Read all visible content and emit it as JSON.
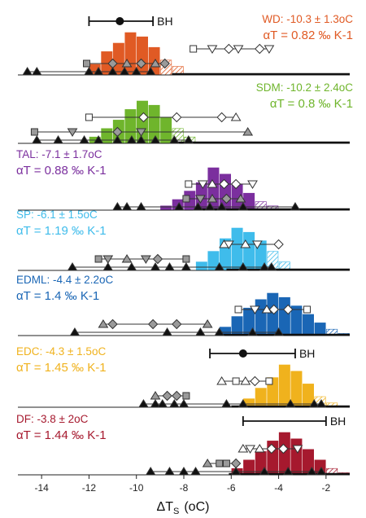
{
  "chart_data": {
    "type": "histogram-stack",
    "xlim": [
      -15,
      -1
    ],
    "x_ticks": [
      -14,
      -12,
      -10,
      -8,
      -6,
      -4,
      -2
    ],
    "x_tick_labels": [
      "-14",
      "-12",
      "-10",
      "-8",
      "-6",
      "-4",
      "-2"
    ],
    "xlabel_main": "ΔT",
    "xlabel_sub": "S",
    "xlabel_unit": "(oC)",
    "bh_label": "BH",
    "panels": [
      {
        "id": "WD",
        "color": "#E05A24",
        "line1": "WD: -10.3 ± 1.3oC",
        "line2": "αT = 0.82 ‰ K-1",
        "bins": [
          [
            -12,
            0.25
          ],
          [
            -11.5,
            0.55
          ],
          [
            -11,
            0.75
          ],
          [
            -10.5,
            1.0
          ],
          [
            -10,
            0.9
          ],
          [
            -9.5,
            0.65
          ],
          [
            -9,
            0.35
          ],
          [
            -8.5,
            0.2
          ]
        ],
        "bh": {
          "center": -10.7,
          "min": -12.0,
          "max": -9.3
        },
        "ref": {
          "value": -8.5
        },
        "open": [
          [
            -7.6,
            "square"
          ],
          [
            -6.8,
            "triangle"
          ],
          [
            -6.1,
            "diamond"
          ],
          [
            -5.7,
            "triangle"
          ],
          [
            -4.8,
            "diamond"
          ],
          [
            -4.4,
            "triangle"
          ]
        ],
        "gray": [
          [
            -12.1,
            "square"
          ],
          [
            -11.0,
            "diamond"
          ],
          [
            -10.4,
            "triangle"
          ],
          [
            -9.8,
            "diamond"
          ],
          [
            -9.2,
            "triangle"
          ],
          [
            -8.8,
            "diamond"
          ]
        ],
        "black": [
          -14.6,
          -14.2,
          -12.0,
          -11.6,
          -11.0,
          -10.5,
          -10.0,
          -9.4
        ]
      },
      {
        "id": "SDM",
        "color": "#6FB52C",
        "line1": "SDM: -10.2 ± 2.4oC",
        "line2": "αT = 0.8 ‰ K-1",
        "bins": [
          [
            -12,
            0.15
          ],
          [
            -11.5,
            0.35
          ],
          [
            -11,
            0.55
          ],
          [
            -10.5,
            0.8
          ],
          [
            -10,
            1.0
          ],
          [
            -9.5,
            0.9
          ],
          [
            -9,
            0.6
          ],
          [
            -8.5,
            0.35
          ],
          [
            -8,
            0.15
          ]
        ],
        "ref": {
          "value": -8.5
        },
        "open": [
          [
            -12.0,
            "square"
          ],
          [
            -9.7,
            "diamond"
          ],
          [
            -8.3,
            "diamond"
          ],
          [
            -6.4,
            "diamond"
          ],
          [
            -5.8,
            "triangle"
          ]
        ],
        "gray": [
          [
            -14.3,
            "square"
          ],
          [
            -12.7,
            "triangle"
          ],
          [
            -10.8,
            "diamond"
          ],
          [
            -9.8,
            "triangle"
          ],
          [
            -5.3,
            "triangle"
          ]
        ],
        "black": [
          -14.2,
          -13.3,
          -12.2,
          -11.6,
          -10.8,
          -10.2,
          -9.8,
          -9.2,
          -8.4,
          -7.8
        ]
      },
      {
        "id": "TAL",
        "color": "#7B2F9E",
        "line1": "TAL: -7.1 ± 1.7oC",
        "line2": "αT = 0.88 ‰ K-1",
        "bins": [
          [
            -9,
            0.1
          ],
          [
            -8.5,
            0.25
          ],
          [
            -8,
            0.45
          ],
          [
            -7.5,
            0.65
          ],
          [
            -7,
            1.0
          ],
          [
            -6.5,
            0.85
          ],
          [
            -6,
            0.6
          ],
          [
            -5.5,
            0.4
          ],
          [
            -5,
            0.2
          ],
          [
            -4.5,
            0.1
          ]
        ],
        "ref": {
          "value": -7.5
        },
        "open": [
          [
            -7.8,
            "square"
          ],
          [
            -7.2,
            "triangle"
          ],
          [
            -6.8,
            "triangle"
          ],
          [
            -6.3,
            "diamond"
          ],
          [
            -5.8,
            "diamond"
          ],
          [
            -5.1,
            "triangle"
          ]
        ],
        "gray": [
          [
            -7.9,
            "square"
          ],
          [
            -7.3,
            "triangle"
          ],
          [
            -6.8,
            "triangle"
          ],
          [
            -6.2,
            "diamond"
          ],
          [
            -5.6,
            "triangle"
          ]
        ],
        "black": [
          -10.8,
          -10.4,
          -9.8,
          -8.2,
          -7.4,
          -6.9,
          -6.4,
          -5.5,
          -3.3
        ]
      },
      {
        "id": "SP",
        "color": "#3FBCEB",
        "line1": "SP: -6.1 ± 1.5oC",
        "line2": "αT = 1.19 ‰ K-1",
        "bins": [
          [
            -7.5,
            0.2
          ],
          [
            -7,
            0.45
          ],
          [
            -6.5,
            0.75
          ],
          [
            -6,
            1.0
          ],
          [
            -5.5,
            0.9
          ],
          [
            -5,
            0.7
          ],
          [
            -4.5,
            0.45
          ],
          [
            -4,
            0.2
          ]
        ],
        "ref": {
          "value": -6.2
        },
        "open": [
          [
            -6.3,
            "triangle"
          ],
          [
            -6.1,
            "triangle"
          ],
          [
            -5.4,
            "triangle"
          ],
          [
            -4.9,
            "triangle"
          ],
          [
            -4.0,
            "diamond"
          ]
        ],
        "gray": [
          [
            -11.6,
            "square"
          ],
          [
            -11.2,
            "triangle"
          ],
          [
            -10.4,
            "triangle"
          ],
          [
            -9.6,
            "triangle"
          ],
          [
            -9.1,
            "diamond"
          ],
          [
            -7.9,
            "square"
          ]
        ],
        "black": [
          -12.7,
          -11.2,
          -10.2,
          -9.2,
          -8.6,
          -7.9,
          -6.5,
          -5.5,
          -4.6,
          -4.3
        ]
      },
      {
        "id": "EDML",
        "color": "#1A66B5",
        "line1": "EDML: -4.4 ± 2.2oC",
        "line2": "αT = 1.4 ‰ K-1",
        "bins": [
          [
            -6.5,
            0.2
          ],
          [
            -6,
            0.45
          ],
          [
            -5.5,
            0.65
          ],
          [
            -5,
            0.85
          ],
          [
            -4.5,
            1.0
          ],
          [
            -4,
            0.9
          ],
          [
            -3.5,
            0.7
          ],
          [
            -3,
            0.5
          ],
          [
            -2.5,
            0.3
          ],
          [
            -2,
            0.15
          ],
          [
            -1.5,
            0.05
          ]
        ],
        "ref": {
          "value": -6.6
        },
        "open": [
          [
            -5.7,
            "square"
          ],
          [
            -5.0,
            "triangle"
          ],
          [
            -4.5,
            "triangle"
          ],
          [
            -4.2,
            "diamond"
          ],
          [
            -3.6,
            "diamond"
          ],
          [
            -2.8,
            "square"
          ]
        ],
        "gray": [
          [
            -11.4,
            "triangle"
          ],
          [
            -11.0,
            "diamond"
          ],
          [
            -9.3,
            "diamond"
          ],
          [
            -8.3,
            "diamond"
          ],
          [
            -7.0,
            "triangle"
          ]
        ],
        "black": [
          -12.6,
          -8.7,
          -7.3,
          -6.5,
          -5.1,
          -4.0
        ]
      },
      {
        "id": "EDC",
        "color": "#F0B21D",
        "line1": "EDC: -4.3 ± 1.5oC",
        "line2": "αT = 1.45 ‰ K-1",
        "bins": [
          [
            -5.5,
            0.2
          ],
          [
            -5,
            0.45
          ],
          [
            -4.5,
            0.7
          ],
          [
            -4,
            1.0
          ],
          [
            -3.5,
            0.85
          ],
          [
            -3,
            0.55
          ],
          [
            -2.5,
            0.25
          ],
          [
            -2,
            0.1
          ]
        ],
        "bh": {
          "center": -5.5,
          "min": -6.9,
          "max": -3.3
        },
        "ref": {
          "value": -6.0
        },
        "open": [
          [
            -6.4,
            "triangle"
          ],
          [
            -5.8,
            "square"
          ],
          [
            -5.4,
            "triangle"
          ],
          [
            -5.0,
            "diamond"
          ],
          [
            -4.4,
            "square"
          ]
        ],
        "gray": [
          [
            -9.2,
            "triangle"
          ],
          [
            -8.7,
            "diamond"
          ],
          [
            -8.3,
            "diamond"
          ],
          [
            -7.9,
            "square"
          ]
        ],
        "black": [
          -9.7,
          -9.2,
          -8.9,
          -8.4,
          -8.0,
          -6.2,
          -5.5,
          -3.5,
          -2.5,
          -2.2
        ]
      },
      {
        "id": "DF",
        "color": "#A6192E",
        "line1": "DF: -3.8 ± 2oC",
        "line2": "αT = 1.44 ‰ K-1",
        "bins": [
          [
            -6,
            0.15
          ],
          [
            -5.5,
            0.35
          ],
          [
            -5,
            0.55
          ],
          [
            -4.5,
            0.8
          ],
          [
            -4,
            1.0
          ],
          [
            -3.5,
            0.85
          ],
          [
            -3,
            0.6
          ],
          [
            -2.5,
            0.35
          ],
          [
            -2,
            0.15
          ],
          [
            -1.5,
            0.05
          ]
        ],
        "bh": {
          "min": -5.5,
          "max": -2.0
        },
        "ref": {
          "value": -6.1
        },
        "open": [
          [
            -5.5,
            "triangle"
          ],
          [
            -5.2,
            "triangle"
          ],
          [
            -4.8,
            "triangle"
          ],
          [
            -4.3,
            "diamond"
          ],
          [
            -3.8,
            "diamond"
          ],
          [
            -3.2,
            "triangle"
          ]
        ],
        "gray": [
          [
            -7.0,
            "triangle"
          ],
          [
            -6.5,
            "square"
          ],
          [
            -6.2,
            "square"
          ],
          [
            -5.8,
            "diamond"
          ]
        ],
        "black": [
          -9.4,
          -8.6,
          -8.0,
          -7.5,
          -5.8,
          -4.6,
          -3.6,
          -2.6,
          -2.2
        ]
      }
    ]
  }
}
